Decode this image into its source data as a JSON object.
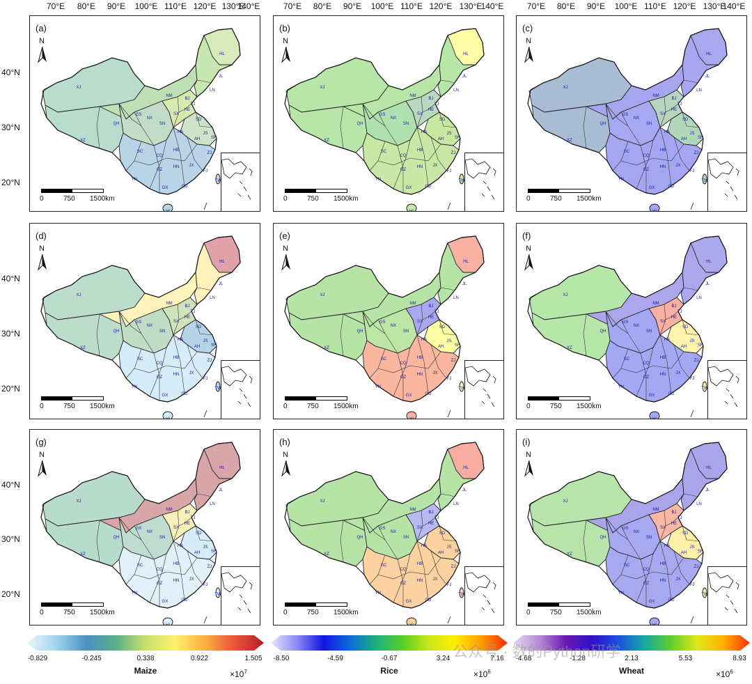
{
  "longitude_labels": [
    "70°E",
    "80°E",
    "90°E",
    "100°E",
    "110°E",
    "120°E",
    "130°E",
    "140°E"
  ],
  "latitude_labels": [
    "40°N",
    "30°N",
    "20°N"
  ],
  "north_label": "N",
  "scale_bar": {
    "l0": "0",
    "l1": "750",
    "l2": "1500km"
  },
  "province_labels": [
    "XJ",
    "XZ",
    "QH",
    "GS",
    "NM",
    "HL",
    "JL",
    "LN",
    "HE",
    "SX",
    "SN",
    "SD",
    "HA",
    "JS",
    "AH",
    "HB",
    "SC",
    "CQ",
    "GZ",
    "YN",
    "HN",
    "JX",
    "ZJ",
    "FJ",
    "GD",
    "GX",
    "HI",
    "TW",
    "BJ",
    "TJ",
    "NX",
    "SH"
  ],
  "panels": [
    {
      "label": "(a)",
      "crop": "Maize",
      "colors": {
        "west": "#b9dccd",
        "ne": "#c8e6b0",
        "north": "#bfe0b5",
        "center": "#c2dcc8",
        "south": "#b8d4e6",
        "nc": "#d6eab0",
        "east": "#cfe3c8",
        "hl": "#d6eabc"
      }
    },
    {
      "label": "(b)",
      "crop": "Rice",
      "colors": {
        "west": "#b8e6a8",
        "ne": "#b8e6a8",
        "north": "#b8e6a8",
        "center": "#b0dfb0",
        "south": "#c9e8a6",
        "nc": "#b8d8c0",
        "east": "#c8e8a2",
        "hl": "#ffffa8"
      }
    },
    {
      "label": "(c)",
      "crop": "Wheat",
      "colors": {
        "west": "#a8bcd4",
        "ne": "#a8a6f0",
        "north": "#a6a6f0",
        "center": "#a6a8f2",
        "south": "#a4a6f2",
        "nc": "#b8d4bc",
        "east": "#b0d8b8",
        "hl": "#a8a8ee"
      }
    },
    {
      "label": "(d)",
      "crop": "Maize",
      "colors": {
        "west": "#bcdccc",
        "ne": "#fff2bc",
        "north": "#fff2bc",
        "center": "#c0dcc4",
        "south": "#d6ecf8",
        "nc": "#cfe4b8",
        "east": "#b6d4e8",
        "hl": "#e0a2a8"
      }
    },
    {
      "label": "(e)",
      "crop": "Rice",
      "colors": {
        "west": "#b6e4a6",
        "ne": "#b6e4a6",
        "north": "#b6e4a6",
        "center": "#bde6a4",
        "south": "#fbb6a0",
        "nc": "#a8a8ee",
        "east": "#ffffa6",
        "hl": "#f8b0a2"
      }
    },
    {
      "label": "(f)",
      "crop": "Wheat",
      "colors": {
        "west": "#b6e6a8",
        "ne": "#ada6ec",
        "north": "#ada6ec",
        "center": "#a4a8f2",
        "south": "#a4a8f2",
        "nc": "#f8b0a2",
        "east": "#fff3ae",
        "hl": "#aca8ec"
      }
    },
    {
      "label": "(g)",
      "crop": "Maize",
      "colors": {
        "west": "#b8dccc",
        "ne": "#d8a6a8",
        "north": "#d8a6a8",
        "center": "#c0dcd0",
        "south": "#e2f0fa",
        "nc": "#f8f0b8",
        "east": "#d6ecf8",
        "hl": "#d8a6a8"
      }
    },
    {
      "label": "(h)",
      "crop": "Rice",
      "colors": {
        "west": "#b6e4a6",
        "ne": "#b6e4a6",
        "north": "#b6e4a6",
        "center": "#b6e4a6",
        "south": "#fcd2a0",
        "nc": "#b8b8f2",
        "east": "#fcd2a0",
        "hl": "#f8aca0"
      }
    },
    {
      "label": "(i)",
      "crop": "Wheat",
      "colors": {
        "west": "#b6e4aa",
        "ne": "#aaa4ea",
        "north": "#aaa4ea",
        "center": "#a6a8f0",
        "south": "#a6a8f0",
        "nc": "#f8b8a4",
        "east": "#fff0a8",
        "hl": "#aaa4ea"
      }
    }
  ],
  "colorbars": [
    {
      "title": "Maize",
      "ticks": [
        "-0.829",
        "-0.245",
        "0.338",
        "0.922",
        "1.505"
      ],
      "exponent": "7",
      "stops": [
        "#eaf6fc",
        "#a0d4ec",
        "#4a90c2",
        "#5aae8a",
        "#c8e06c",
        "#fff070",
        "#fbb040",
        "#e8553a",
        "#b81c28"
      ]
    },
    {
      "title": "Rice",
      "ticks": [
        "-8.50",
        "-4.59",
        "-0.67",
        "3.24",
        "7.16"
      ],
      "exponent": "6",
      "stops": [
        "#e4e4fc",
        "#8a8af4",
        "#1414e6",
        "#0a6ad6",
        "#20b080",
        "#58cc28",
        "#c8e818",
        "#ffee00",
        "#ff9c00",
        "#ff2a00"
      ]
    },
    {
      "title": "Wheat",
      "ticks": [
        "-4.68",
        "-1.28",
        "2.13",
        "5.53",
        "8.93"
      ],
      "exponent": "6",
      "stops": [
        "#e6daf2",
        "#b48ad4",
        "#6a1ab0",
        "#3010c8",
        "#1a50e0",
        "#18a8a0",
        "#60cc30",
        "#e0e818",
        "#ffb000",
        "#ff3000"
      ]
    }
  ],
  "multiplier": "×10",
  "watermark": "公众号 · 数的Python研学"
}
